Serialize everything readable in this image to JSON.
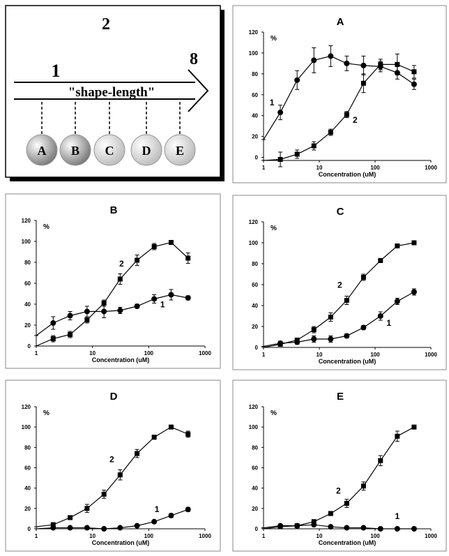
{
  "diagram": {
    "top_label": "2",
    "left_label": "1",
    "right_label": "8",
    "arrow_label": "\"shape-length\"",
    "nodes": [
      "A",
      "B",
      "C",
      "D",
      "E"
    ]
  },
  "chart_data": [
    {
      "type": "line",
      "title": "A",
      "ylabel": "%",
      "xlabel": "Concentration (uM)",
      "xscale": "log",
      "xlim": [
        1,
        1000
      ],
      "xticks": [
        1,
        10,
        100,
        1000
      ],
      "ylim": [
        -3,
        120
      ],
      "yticks": [
        0,
        20,
        40,
        60,
        80,
        100,
        120
      ],
      "x": [
        1,
        2,
        4,
        8,
        16,
        31,
        62,
        125,
        250,
        500
      ],
      "series": [
        {
          "name": "1",
          "marker": "circle",
          "color": "#000000",
          "values": [
            17,
            43,
            74,
            93,
            97,
            90,
            88,
            87,
            81,
            70
          ],
          "errors": [
            0,
            7,
            9,
            12,
            10,
            7,
            9,
            5,
            6,
            5
          ]
        },
        {
          "name": "2",
          "marker": "square",
          "color": "#000000",
          "values": [
            -3,
            -2,
            3,
            11,
            24,
            41,
            71,
            89,
            89,
            82
          ],
          "errors": [
            0,
            7,
            4,
            4,
            3,
            3,
            9,
            5,
            10,
            6
          ]
        }
      ]
    },
    {
      "type": "line",
      "title": "B",
      "ylabel": "%",
      "xlabel": "Concentration (uM)",
      "xscale": "log",
      "xlim": [
        1,
        1000
      ],
      "xticks": [
        1,
        10,
        100,
        1000
      ],
      "ylim": [
        0,
        120
      ],
      "yticks": [
        0,
        20,
        40,
        60,
        80,
        100,
        120
      ],
      "x": [
        1,
        2,
        4,
        8,
        16,
        31,
        62,
        125,
        250,
        500
      ],
      "series": [
        {
          "name": "1",
          "marker": "circle",
          "color": "#000000",
          "values": [
            10,
            22,
            29,
            33,
            33,
            34,
            38,
            45,
            49,
            46
          ],
          "errors": [
            0,
            6,
            4,
            5,
            6,
            3,
            2,
            4,
            5,
            2
          ]
        },
        {
          "name": "2",
          "marker": "square",
          "color": "#000000",
          "values": [
            0,
            7,
            11,
            25,
            41,
            64,
            82,
            95,
            99,
            84
          ],
          "errors": [
            0,
            3,
            3,
            3,
            3,
            5,
            5,
            3,
            2,
            5
          ]
        }
      ]
    },
    {
      "type": "line",
      "title": "C",
      "ylabel": "%",
      "xlabel": "Concentration (uM)",
      "xscale": "log",
      "xlim": [
        1,
        1000
      ],
      "xticks": [
        1,
        10,
        100,
        1000
      ],
      "ylim": [
        0,
        120
      ],
      "yticks": [
        0,
        20,
        40,
        60,
        80,
        100,
        120
      ],
      "x": [
        1,
        2,
        4,
        8,
        16,
        31,
        62,
        125,
        250,
        500
      ],
      "series": [
        {
          "name": "1",
          "marker": "circle",
          "color": "#000000",
          "values": [
            1,
            4,
            5,
            8,
            8,
            11,
            19,
            30,
            44,
            53
          ],
          "errors": [
            0,
            2,
            2,
            3,
            3,
            2,
            2,
            4,
            3,
            3
          ]
        },
        {
          "name": "2",
          "marker": "square",
          "color": "#000000",
          "values": [
            0,
            3,
            7,
            17,
            29,
            45,
            67,
            83,
            97,
            100
          ],
          "errors": [
            0,
            2,
            2,
            3,
            4,
            4,
            3,
            2,
            2,
            1
          ]
        }
      ]
    },
    {
      "type": "line",
      "title": "D",
      "ylabel": "%",
      "xlabel": "Concentration (uM)",
      "xscale": "log",
      "xlim": [
        1,
        1000
      ],
      "xticks": [
        1,
        10,
        100,
        1000
      ],
      "ylim": [
        0,
        120
      ],
      "yticks": [
        0,
        20,
        40,
        60,
        80,
        100,
        120
      ],
      "x": [
        1,
        2,
        4,
        8,
        16,
        31,
        62,
        125,
        250,
        500
      ],
      "series": [
        {
          "name": "1",
          "marker": "circle",
          "color": "#000000",
          "values": [
            0,
            1,
            1,
            1,
            0,
            1,
            3,
            7,
            13,
            19
          ],
          "errors": [
            0,
            1,
            1,
            1,
            1,
            1,
            1,
            1,
            2,
            2
          ]
        },
        {
          "name": "2",
          "marker": "square",
          "color": "#000000",
          "values": [
            2,
            4,
            11,
            20,
            34,
            53,
            74,
            90,
            100,
            93
          ],
          "errors": [
            0,
            2,
            2,
            4,
            4,
            5,
            4,
            2,
            1,
            3
          ]
        }
      ]
    },
    {
      "type": "line",
      "title": "E",
      "ylabel": "%",
      "xlabel": "Concentration (uM)",
      "xscale": "log",
      "xlim": [
        1,
        1000
      ],
      "xticks": [
        1,
        10,
        100,
        1000
      ],
      "ylim": [
        0,
        120
      ],
      "yticks": [
        0,
        20,
        40,
        60,
        80,
        100,
        120
      ],
      "x": [
        1,
        2,
        4,
        8,
        16,
        31,
        62,
        125,
        250,
        500
      ],
      "series": [
        {
          "name": "1",
          "marker": "circle",
          "color": "#000000",
          "values": [
            1,
            3,
            3,
            4,
            2,
            1,
            1,
            0,
            0,
            0
          ],
          "errors": [
            0,
            1,
            1,
            1,
            1,
            1,
            1,
            1,
            1,
            1
          ]
        },
        {
          "name": "2",
          "marker": "square",
          "color": "#000000",
          "values": [
            0,
            2,
            3,
            7,
            15,
            25,
            42,
            67,
            91,
            100
          ],
          "errors": [
            0,
            1,
            1,
            2,
            2,
            4,
            4,
            5,
            5,
            1
          ]
        }
      ]
    }
  ]
}
